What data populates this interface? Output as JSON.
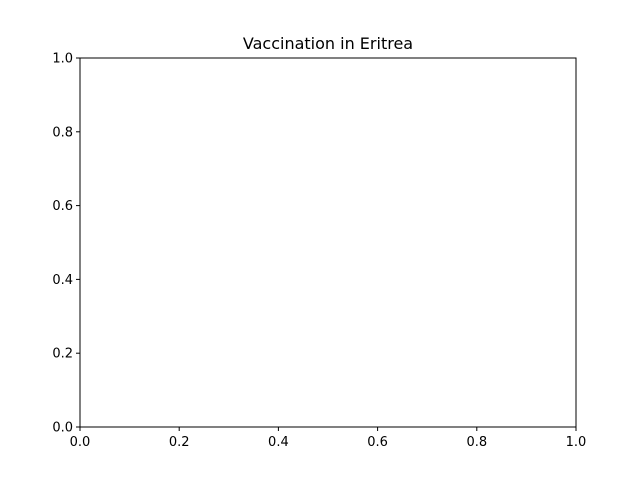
{
  "chart_data": {
    "type": "line",
    "title": "Vaccination in Eritrea",
    "xlabel": "",
    "ylabel": "",
    "xlim": [
      0.0,
      1.0
    ],
    "ylim": [
      0.0,
      1.0
    ],
    "xticks": [
      0.0,
      0.2,
      0.4,
      0.6,
      0.8,
      1.0
    ],
    "yticks": [
      0.0,
      0.2,
      0.4,
      0.6,
      0.8,
      1.0
    ],
    "xtick_labels": [
      "0.0",
      "0.2",
      "0.4",
      "0.6",
      "0.8",
      "1.0"
    ],
    "ytick_labels": [
      "0.0",
      "0.2",
      "0.4",
      "0.6",
      "0.8",
      "1.0"
    ],
    "series": [],
    "grid": false,
    "legend": "none"
  },
  "colors": {
    "axes": "#000000",
    "background": "#ffffff"
  }
}
